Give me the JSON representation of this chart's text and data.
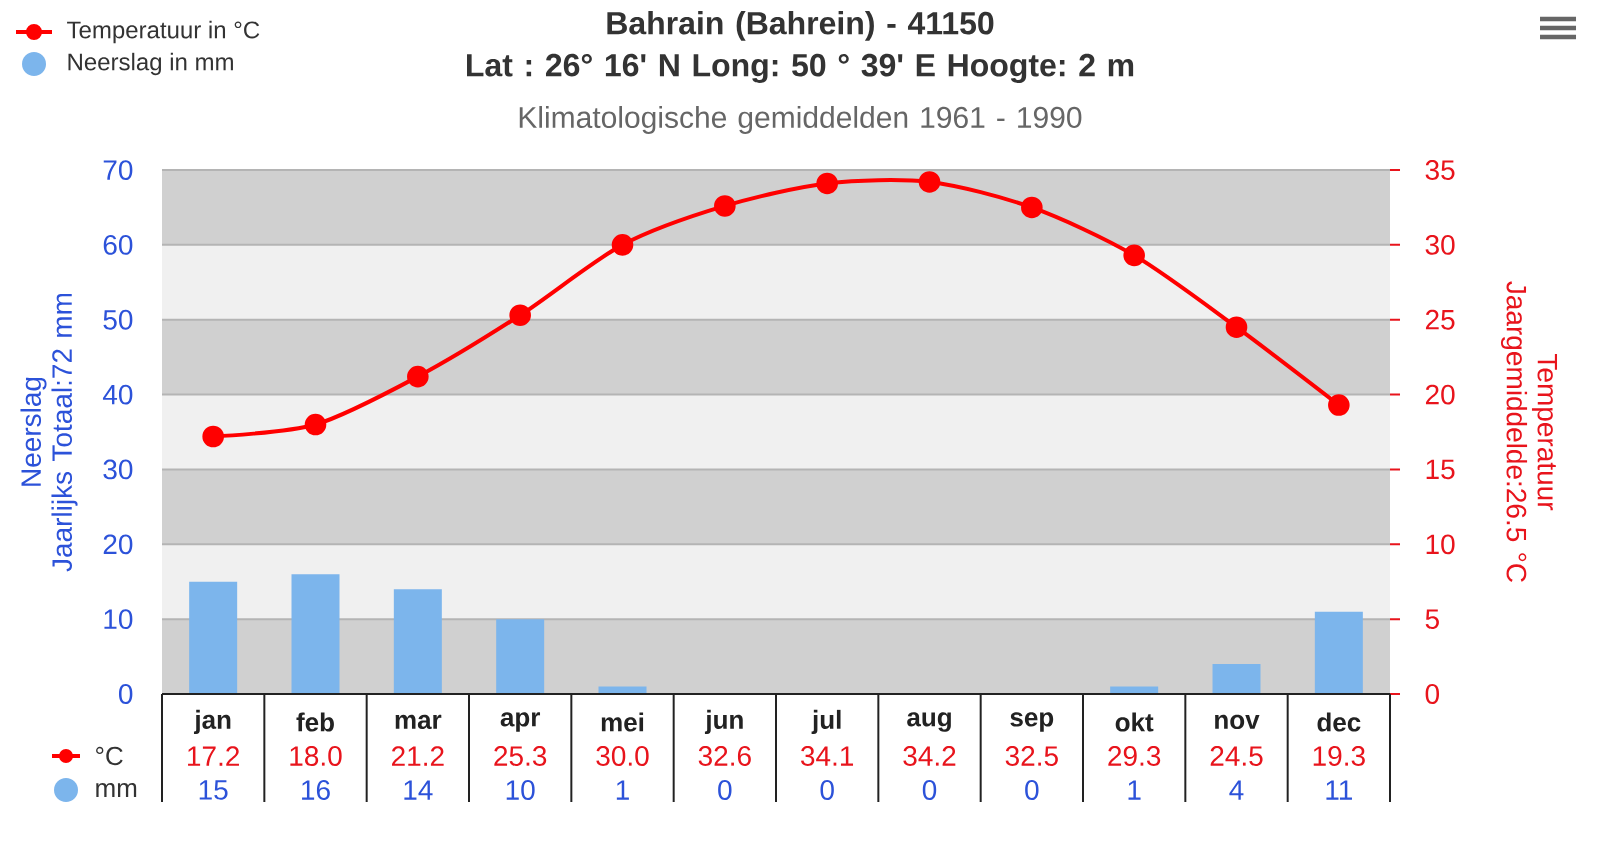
{
  "chart_data": {
    "type": "bar",
    "title": "Bahrain (Bahrein) - 41150\nLat : 26° 16' N Long: 50 ° 39' E Hoogte: 2 m",
    "subtitle": "Klimatologische gemiddelden 1961 - 1990",
    "ylabel": "Neerslag\nJaarlijks Totaal:72 mm",
    "y2label": "Temperatuur\nJaargemiddelde:26.5 °C",
    "annotations": [
      "°C",
      "mm"
    ],
    "categories": [
      "jan",
      "feb",
      "mar",
      "apr",
      "mei",
      "jun",
      "jul",
      "aug",
      "sep",
      "okt",
      "nov",
      "dec"
    ],
    "series": [
      {
        "name": "Temperatuur in °C",
        "type": "line",
        "axis": "y2",
        "color": "#ff0000",
        "values": [
          17.2,
          18.0,
          21.2,
          25.3,
          30.0,
          32.6,
          34.1,
          34.2,
          32.5,
          29.3,
          24.5,
          19.3
        ],
        "value_labels": [
          "17.2",
          "18.0",
          "21.2",
          "25.3",
          "30.0",
          "32.6",
          "34.1",
          "34.2",
          "32.5",
          "29.3",
          "24.5",
          "19.3"
        ]
      },
      {
        "name": "Neerslag in mm",
        "color": "#7cb5ec",
        "values": [
          15,
          16,
          14,
          10,
          1,
          0,
          0,
          0,
          0,
          1,
          4,
          11
        ],
        "value_labels": [
          "15",
          "16",
          "14",
          "10",
          "1",
          "0",
          "0",
          "0",
          "0",
          "1",
          "4",
          "11"
        ]
      }
    ],
    "ylim": [
      0,
      70
    ],
    "yticks": [
      0,
      10,
      20,
      30,
      40,
      50,
      60,
      70
    ],
    "y2lim": [
      0,
      35
    ],
    "y2ticks": [
      0,
      5,
      10,
      15,
      20,
      25,
      30,
      35
    ],
    "bands": [
      {
        "axis": "y",
        "from": 0,
        "to": 10,
        "color": "#d0d0d0"
      },
      {
        "axis": "y",
        "from": 10,
        "to": 20,
        "color": "#f0f0f0"
      },
      {
        "axis": "y",
        "from": 20,
        "to": 30,
        "color": "#d0d0d0"
      },
      {
        "axis": "y",
        "from": 30,
        "to": 40,
        "color": "#f0f0f0"
      },
      {
        "axis": "y",
        "from": 40,
        "to": 50,
        "color": "#d0d0d0"
      },
      {
        "axis": "y",
        "from": 50,
        "to": 60,
        "color": "#f0f0f0"
      },
      {
        "axis": "y",
        "from": 60,
        "to": 70,
        "color": "#d0d0d0"
      }
    ],
    "grid": "y",
    "legend": "top left",
    "marker": "circle"
  }
}
